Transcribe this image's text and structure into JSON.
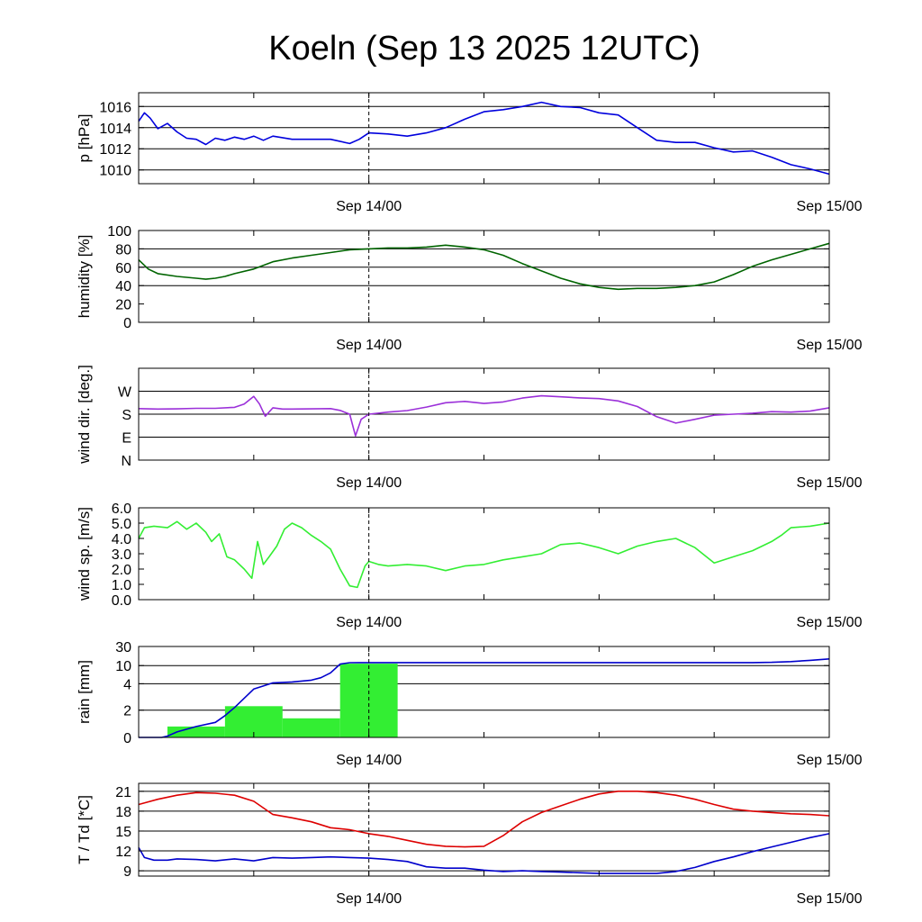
{
  "title": "Koeln (Sep 13 2025 12UTC)",
  "x_tick_labels": [
    "Sep 14/00",
    "Sep 15/00"
  ],
  "colors": {
    "pressure": "#0000dd",
    "humidity": "#006400",
    "wind_dir": "#9b30d9",
    "wind_speed": "#33ee33",
    "rain_bar": "#33ee33",
    "rain_line": "#0000cc",
    "temperature": "#dd0000",
    "dewpoint": "#0000cc"
  },
  "chart_data": [
    {
      "id": "pressure",
      "type": "line",
      "ylabel": "p [hPa]",
      "x_unit": "hours since Sep 13 12UTC",
      "xlim": [
        0,
        36
      ],
      "ylim": [
        1008.7,
        1017.3
      ],
      "yticks": [
        1010,
        1012,
        1014,
        1016
      ],
      "yticklabels": [
        "1010",
        "1012",
        "1014",
        "1016"
      ],
      "grid_y": [
        1010,
        1012,
        1014,
        1016
      ],
      "series": [
        {
          "name": "pressure",
          "x": [
            0,
            0.3,
            0.6,
            1.0,
            1.5,
            2.0,
            2.5,
            3.0,
            3.5,
            4.0,
            4.5,
            5.0,
            5.5,
            6.0,
            6.5,
            7.0,
            8.0,
            9.0,
            10.0,
            11.0,
            11.5,
            12.0,
            13.0,
            14.0,
            15.0,
            16.0,
            17.0,
            18.0,
            19.0,
            20.0,
            21.0,
            22.0,
            23.0,
            24.0,
            25.0,
            26.0,
            27.0,
            28.0,
            29.0,
            30.0,
            31.0,
            32.0,
            33.0,
            34.0,
            35.0,
            36.0
          ],
          "values": [
            1014.6,
            1015.4,
            1014.9,
            1013.9,
            1014.4,
            1013.6,
            1013.0,
            1012.9,
            1012.4,
            1013.0,
            1012.8,
            1013.1,
            1012.9,
            1013.2,
            1012.8,
            1013.2,
            1012.9,
            1012.9,
            1012.9,
            1012.5,
            1012.9,
            1013.5,
            1013.4,
            1013.2,
            1013.5,
            1014.0,
            1014.8,
            1015.5,
            1015.7,
            1016.0,
            1016.4,
            1016.0,
            1015.9,
            1015.4,
            1015.2,
            1014.0,
            1012.8,
            1012.6,
            1012.6,
            1012.1,
            1011.7,
            1011.8,
            1011.2,
            1010.5,
            1010.1,
            1009.6
          ]
        }
      ]
    },
    {
      "id": "humidity",
      "type": "line",
      "ylabel": "humidity [%]",
      "x_unit": "hours since Sep 13 12UTC",
      "xlim": [
        0,
        36
      ],
      "ylim": [
        0,
        100
      ],
      "yticks": [
        0,
        20,
        40,
        60,
        80,
        100
      ],
      "yticklabels": [
        "0",
        "20",
        "40",
        "60",
        "80",
        "100"
      ],
      "grid_y": [
        40,
        60,
        80
      ],
      "series": [
        {
          "name": "humidity",
          "x": [
            0,
            0.5,
            1.0,
            2.0,
            3.0,
            3.5,
            4.0,
            4.5,
            5.0,
            6.0,
            7.0,
            8.0,
            9.0,
            10.0,
            11.0,
            12.0,
            13.0,
            14.0,
            15.0,
            16.0,
            17.0,
            18.0,
            19.0,
            20.0,
            21.0,
            22.0,
            23.0,
            24.0,
            25.0,
            26.0,
            27.0,
            28.0,
            29.0,
            30.0,
            31.0,
            32.0,
            33.0,
            34.0,
            35.0,
            36.0
          ],
          "values": [
            68,
            58,
            53,
            50,
            48,
            47,
            48,
            50,
            53,
            58,
            66,
            70,
            73,
            76,
            79,
            80,
            81,
            81,
            82,
            84,
            82,
            79,
            73,
            64,
            56,
            48,
            42,
            38,
            36,
            37,
            37,
            38,
            40,
            44,
            52,
            61,
            68,
            74,
            80,
            86
          ]
        }
      ]
    },
    {
      "id": "wind_direction",
      "type": "line",
      "ylabel": "wind dir. [deg.]",
      "x_unit": "hours since Sep 13 12UTC",
      "xlim": [
        0,
        36
      ],
      "ylim": [
        0,
        360
      ],
      "yticks": [
        0,
        90,
        180,
        270
      ],
      "yticklabels": [
        "N",
        "E",
        "S",
        "W"
      ],
      "grid_y": [
        90,
        180,
        270
      ],
      "series": [
        {
          "name": "wind direction",
          "x": [
            0,
            1.0,
            2.0,
            3.0,
            4.0,
            5.0,
            5.5,
            6.0,
            6.3,
            6.6,
            7.0,
            7.5,
            8.0,
            9.0,
            10.0,
            10.5,
            11.0,
            11.3,
            11.6,
            12.0,
            13.0,
            14.0,
            15.0,
            16.0,
            17.0,
            18.0,
            19.0,
            20.0,
            21.0,
            22.0,
            23.0,
            24.0,
            25.0,
            26.0,
            27.0,
            28.0,
            29.0,
            30.0,
            31.0,
            32.0,
            33.0,
            34.0,
            35.0,
            36.0
          ],
          "values": [
            202,
            200,
            201,
            203,
            203,
            207,
            220,
            250,
            220,
            172,
            205,
            200,
            200,
            201,
            202,
            195,
            180,
            95,
            160,
            180,
            188,
            194,
            208,
            225,
            230,
            222,
            228,
            243,
            252,
            248,
            244,
            241,
            232,
            210,
            170,
            145,
            160,
            176,
            180,
            184,
            190,
            188,
            192,
            205
          ]
        }
      ]
    },
    {
      "id": "wind_speed",
      "type": "line",
      "ylabel": "wind sp. [m/s]",
      "x_unit": "hours since Sep 13 12UTC",
      "xlim": [
        0,
        36
      ],
      "ylim": [
        0,
        6
      ],
      "yticks": [
        0,
        1,
        2,
        3,
        4,
        5,
        6
      ],
      "yticklabels": [
        "0.0",
        "1.0",
        "2.0",
        "3.0",
        "4.0",
        "5.0",
        "6.0"
      ],
      "grid_y": [],
      "series": [
        {
          "name": "wind speed",
          "x": [
            0,
            0.3,
            0.8,
            1.5,
            2.0,
            2.5,
            3.0,
            3.5,
            3.8,
            4.2,
            4.6,
            5.0,
            5.5,
            5.9,
            6.2,
            6.5,
            6.8,
            7.2,
            7.6,
            8.0,
            8.5,
            9.0,
            9.5,
            10.0,
            10.5,
            11.0,
            11.4,
            11.8,
            12.0,
            12.5,
            13.0,
            14.0,
            15.0,
            16.0,
            17.0,
            18.0,
            19.0,
            20.0,
            21.0,
            22.0,
            23.0,
            24.0,
            25.0,
            26.0,
            27.0,
            28.0,
            29.0,
            30.0,
            31.0,
            32.0,
            33.0,
            33.5,
            34.0,
            35.0,
            36.0
          ],
          "values": [
            4.0,
            4.7,
            4.8,
            4.7,
            5.1,
            4.6,
            5.0,
            4.4,
            3.8,
            4.3,
            2.8,
            2.6,
            2.0,
            1.4,
            3.8,
            2.3,
            2.8,
            3.5,
            4.6,
            5.0,
            4.7,
            4.2,
            3.8,
            3.3,
            2.0,
            0.9,
            0.8,
            2.2,
            2.5,
            2.3,
            2.2,
            2.3,
            2.2,
            1.9,
            2.2,
            2.3,
            2.6,
            2.8,
            3.0,
            3.6,
            3.7,
            3.4,
            3.0,
            3.5,
            3.8,
            4.0,
            3.4,
            2.4,
            2.8,
            3.2,
            3.8,
            4.2,
            4.7,
            4.8,
            5.0
          ]
        }
      ]
    },
    {
      "id": "rain",
      "type": "bar+line",
      "ylabel": "rain [mm]",
      "x_unit": "hours since Sep 13 12UTC",
      "xlim": [
        0,
        36
      ],
      "yscale": "nonlinear",
      "yticks": [
        0,
        2,
        4,
        10,
        30
      ],
      "yticklabels": [
        "0",
        "2",
        "4",
        "10",
        "30"
      ],
      "grid_y": [
        2,
        4,
        10
      ],
      "bars": {
        "name": "rain per 3h",
        "x_start": [
          1.5,
          4.5,
          7.5,
          10.5
        ],
        "x_end": [
          4.5,
          7.5,
          10.5,
          13.5
        ],
        "values": [
          0.8,
          2.3,
          1.4,
          12.0
        ]
      },
      "series": [
        {
          "name": "accumulated rain",
          "x": [
            0,
            1.2,
            1.5,
            2.0,
            3.0,
            4.0,
            4.5,
            5.0,
            6.0,
            7.0,
            8.0,
            9.0,
            9.5,
            10.0,
            10.5,
            11.0,
            11.5,
            12.0,
            14.0,
            20.0,
            26.0,
            31.0,
            32.0,
            33.0,
            34.0,
            35.0,
            36.0
          ],
          "values": [
            0,
            0,
            0.1,
            0.4,
            0.8,
            1.1,
            1.6,
            2.2,
            3.6,
            4.3,
            4.6,
            5.2,
            6.0,
            7.6,
            11.5,
            13.0,
            13.1,
            13.1,
            13.1,
            13.1,
            13.1,
            13.1,
            13.1,
            13.4,
            14.2,
            15.5,
            17.0
          ]
        }
      ]
    },
    {
      "id": "temperature",
      "type": "line",
      "ylabel": "T / Td [*C]",
      "x_unit": "hours since Sep 13 12UTC",
      "xlim": [
        0,
        36
      ],
      "ylim": [
        8.2,
        22.2
      ],
      "yticks": [
        9,
        12,
        15,
        18,
        21
      ],
      "yticklabels": [
        "9",
        "12",
        "15",
        "18",
        "21"
      ],
      "grid_y": [
        9,
        12,
        15,
        18,
        21
      ],
      "series": [
        {
          "name": "T",
          "x": [
            0,
            1.0,
            2.0,
            3.0,
            4.0,
            5.0,
            6.0,
            7.0,
            8.0,
            9.0,
            10.0,
            11.0,
            12.0,
            13.0,
            14.0,
            15.0,
            16.0,
            17.0,
            18.0,
            19.0,
            20.0,
            21.0,
            22.0,
            23.0,
            24.0,
            25.0,
            26.0,
            27.0,
            28.0,
            29.0,
            30.0,
            31.0,
            32.0,
            33.0,
            34.0,
            35.0,
            36.0
          ],
          "values": [
            19.0,
            19.8,
            20.4,
            20.8,
            20.7,
            20.4,
            19.5,
            17.5,
            17.0,
            16.4,
            15.5,
            15.2,
            14.6,
            14.2,
            13.6,
            13.0,
            12.7,
            12.6,
            12.7,
            14.3,
            16.4,
            17.8,
            18.8,
            19.8,
            20.6,
            21.0,
            21.0,
            20.8,
            20.4,
            19.8,
            19.0,
            18.3,
            18.0,
            17.8,
            17.6,
            17.5,
            17.3
          ]
        },
        {
          "name": "Td",
          "x": [
            0,
            0.3,
            0.8,
            1.5,
            2.0,
            3.0,
            4.0,
            5.0,
            6.0,
            7.0,
            8.0,
            9.0,
            10.0,
            11.0,
            12.0,
            13.0,
            14.0,
            15.0,
            16.0,
            17.0,
            18.0,
            19.0,
            20.0,
            21.0,
            22.0,
            23.0,
            24.0,
            25.0,
            26.0,
            27.0,
            28.0,
            29.0,
            30.0,
            31.0,
            32.0,
            33.0,
            34.0,
            35.0,
            36.0
          ],
          "values": [
            12.5,
            11.0,
            10.6,
            10.6,
            10.8,
            10.7,
            10.5,
            10.8,
            10.5,
            11.0,
            10.9,
            11.0,
            11.1,
            11.0,
            10.9,
            10.7,
            10.4,
            9.6,
            9.4,
            9.4,
            9.1,
            8.9,
            9.0,
            8.9,
            8.8,
            8.7,
            8.6,
            8.6,
            8.6,
            8.6,
            8.9,
            9.5,
            10.4,
            11.1,
            11.9,
            12.6,
            13.3,
            14.0,
            14.6
          ]
        }
      ]
    }
  ]
}
